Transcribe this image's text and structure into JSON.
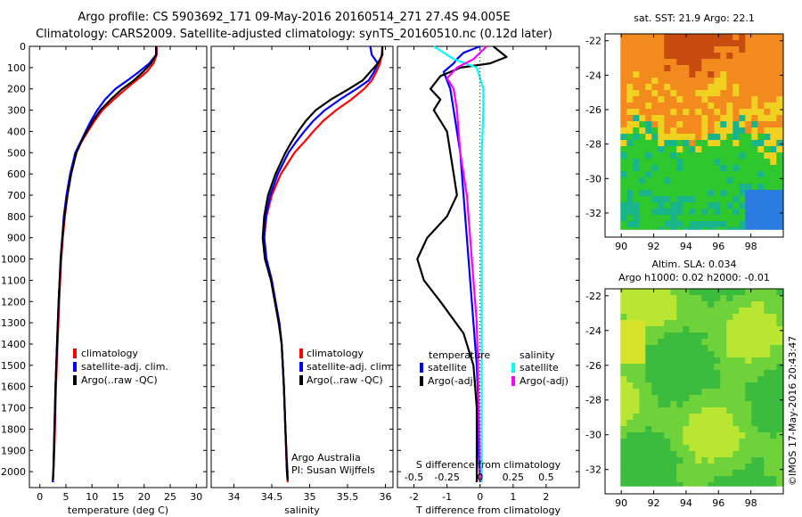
{
  "title": {
    "line1": "Argo profile: CS 5903692_171 09-May-2016 20160514_271 27.4S 94.005E",
    "line2": "Climatology: CARS2009. Satellite-adjusted climatology: synTS_20160510.nc (0.12d later)"
  },
  "watermark": "©IMOS 17-May-2016 20:43:47",
  "chart_data": [
    {
      "type": "line",
      "id": "temperature",
      "xlabel": "temperature (deg C)",
      "ylabel": "",
      "xlim": [
        -2,
        32
      ],
      "ylim": [
        2075,
        0
      ],
      "xticks": [
        0,
        5,
        10,
        15,
        20,
        25,
        30
      ],
      "yticks": [
        0,
        100,
        200,
        300,
        400,
        500,
        600,
        700,
        800,
        900,
        1000,
        1100,
        1200,
        1300,
        1400,
        1500,
        1600,
        1700,
        1800,
        1900,
        2000
      ],
      "legend": {
        "position": "center-left",
        "items": [
          "climatology",
          "satellite-adj. clim.",
          "Argo(..raw -QC)"
        ]
      },
      "series": [
        {
          "name": "climatology",
          "color": "#ff0000",
          "x": [
            22.4,
            22.4,
            21.8,
            20.5,
            18.5,
            16.5,
            14.2,
            12.0,
            10.5,
            9.2,
            8.0,
            7.0,
            6.0,
            5.3,
            4.8,
            4.4,
            4.1,
            3.7,
            3.4,
            3.1,
            2.9,
            2.7,
            2.6,
            2.5
          ],
          "y": [
            0,
            40,
            80,
            120,
            160,
            200,
            250,
            300,
            350,
            400,
            450,
            500,
            600,
            700,
            800,
            900,
            1000,
            1200,
            1400,
            1600,
            1800,
            1950,
            2000,
            2050
          ]
        },
        {
          "name": "satellite-adj. clim.",
          "color": "#0000ff",
          "x": [
            22.3,
            22.3,
            21.0,
            19.0,
            16.8,
            14.5,
            12.5,
            11.0,
            9.8,
            8.8,
            7.8,
            6.8,
            5.8,
            5.1,
            4.6,
            4.3,
            4.0,
            3.6,
            3.3,
            3.0,
            2.8,
            2.6,
            2.5
          ],
          "y": [
            0,
            40,
            80,
            120,
            160,
            200,
            250,
            300,
            350,
            400,
            450,
            500,
            600,
            700,
            800,
            900,
            1000,
            1200,
            1400,
            1600,
            1800,
            2000,
            2050
          ]
        },
        {
          "name": "Argo(..raw -QC)",
          "color": "#000000",
          "x": [
            22.3,
            22.3,
            21.3,
            19.8,
            18.0,
            15.8,
            13.6,
            11.6,
            10.2,
            9.0,
            7.9,
            7.0,
            6.0,
            5.3,
            4.7,
            4.3,
            4.0,
            3.6,
            3.3,
            3.0,
            2.8,
            2.6,
            2.5
          ],
          "y": [
            0,
            40,
            80,
            120,
            160,
            200,
            250,
            300,
            350,
            400,
            450,
            500,
            600,
            700,
            800,
            900,
            1000,
            1200,
            1400,
            1600,
            1800,
            2000,
            2040
          ]
        }
      ]
    },
    {
      "type": "line",
      "id": "salinity",
      "xlabel": "salinity",
      "ylabel": "",
      "xlim": [
        33.7,
        36.1
      ],
      "ylim": [
        2075,
        0
      ],
      "xticks": [
        34,
        34.5,
        35,
        35.5,
        36
      ],
      "legend": {
        "position": "center-right",
        "items": [
          "climatology",
          "satellite-adj. clim.",
          "Argo(..raw -QC)"
        ]
      },
      "annotation": {
        "line1": "Argo Australia",
        "line2": "PI: Susan Wijffels"
      },
      "series": [
        {
          "name": "climatology",
          "color": "#ff0000",
          "x": [
            35.96,
            35.95,
            35.93,
            35.88,
            35.82,
            35.72,
            35.55,
            35.35,
            35.18,
            35.05,
            34.93,
            34.8,
            34.62,
            34.5,
            34.43,
            34.4,
            34.43,
            34.5,
            34.55,
            34.6,
            34.63,
            34.66,
            34.68,
            34.7,
            34.71,
            34.71
          ],
          "y": [
            0,
            40,
            80,
            120,
            160,
            200,
            250,
            300,
            350,
            400,
            450,
            500,
            600,
            700,
            800,
            900,
            1000,
            1100,
            1200,
            1300,
            1400,
            1600,
            1800,
            1950,
            2000,
            2050
          ]
        },
        {
          "name": "satellite-adj. clim.",
          "color": "#0000ff",
          "x": [
            35.8,
            35.82,
            35.9,
            35.85,
            35.78,
            35.62,
            35.4,
            35.2,
            35.05,
            34.93,
            34.82,
            34.72,
            34.58,
            34.48,
            34.42,
            34.4,
            34.43,
            34.5,
            34.55,
            34.6,
            34.63,
            34.66,
            34.68,
            34.7,
            34.71
          ],
          "y": [
            0,
            40,
            80,
            120,
            160,
            200,
            250,
            300,
            350,
            400,
            450,
            500,
            600,
            700,
            800,
            900,
            1000,
            1100,
            1200,
            1300,
            1400,
            1600,
            1800,
            2000,
            2040
          ]
        },
        {
          "name": "Argo(..raw -QC)",
          "color": "#000000",
          "x": [
            35.96,
            35.96,
            35.9,
            35.8,
            35.7,
            35.52,
            35.28,
            35.08,
            34.95,
            34.85,
            34.76,
            34.68,
            34.55,
            34.45,
            34.4,
            34.38,
            34.41,
            34.49,
            34.54,
            34.59,
            34.63,
            34.66,
            34.68,
            34.7,
            34.71
          ],
          "y": [
            0,
            40,
            80,
            120,
            160,
            200,
            250,
            300,
            350,
            400,
            450,
            500,
            600,
            700,
            800,
            900,
            1000,
            1100,
            1200,
            1300,
            1400,
            1600,
            1800,
            2000,
            2040
          ]
        }
      ]
    },
    {
      "type": "line",
      "id": "difference",
      "xlabel": "T difference from climatology",
      "xlabel_top": "S difference from climatology",
      "xlim": [
        -2.5,
        3.0
      ],
      "ylim": [
        2075,
        0
      ],
      "xticks": [
        -2,
        -1,
        0,
        1,
        2
      ],
      "sticks": [
        -0.5,
        -0.25,
        0,
        0.25,
        0.5
      ],
      "zero_line": "dotted",
      "legend": {
        "position": "center",
        "groups": [
          {
            "title": "temperature",
            "items": [
              "satellite",
              "Argo(-adj)"
            ]
          },
          {
            "title": "salinity",
            "items": [
              "satellite",
              "Argo(-adj)"
            ]
          }
        ]
      },
      "series": [
        {
          "name": "temperature satellite",
          "color": "#0000ff",
          "x": [
            0,
            -0.5,
            -0.7,
            -0.8,
            -1.1,
            -1.0,
            -0.9,
            -0.8,
            -0.6,
            -0.5,
            -0.4,
            -0.3,
            -0.2,
            -0.1,
            -0.05,
            -0.05,
            -0.02,
            0
          ],
          "y": [
            0,
            30,
            60,
            80,
            120,
            160,
            200,
            300,
            500,
            700,
            900,
            1100,
            1300,
            1500,
            1700,
            1900,
            2000,
            2050
          ]
        },
        {
          "name": "temperature Argo(-adj)",
          "color": "#000000",
          "x": [
            0.4,
            0.8,
            0.3,
            -0.6,
            -1.2,
            -1.5,
            -1.2,
            -1.4,
            -1.0,
            -0.8,
            -0.7,
            -1.0,
            -1.6,
            -1.9,
            -1.7,
            -1.2,
            -0.5,
            -0.2,
            -0.1,
            -0.1,
            -0.1
          ],
          "y": [
            0,
            50,
            80,
            100,
            140,
            200,
            250,
            300,
            400,
            600,
            700,
            800,
            900,
            1000,
            1100,
            1200,
            1350,
            1500,
            1700,
            1900,
            2050
          ]
        },
        {
          "name": "salinity satellite",
          "color": "#00ffff",
          "x": [
            -1.4,
            -0.8,
            -0.1,
            0.1,
            0.1,
            0.05,
            0.05,
            0.05,
            0.05,
            0.05,
            0.05,
            0.05
          ],
          "y": [
            0,
            60,
            100,
            200,
            300,
            500,
            700,
            900,
            1200,
            1500,
            1800,
            2050
          ]
        },
        {
          "name": "salinity Argo(-adj)",
          "color": "#ff00ff",
          "x": [
            0.2,
            -0.2,
            -0.7,
            -1.0,
            -0.8,
            -0.7,
            -0.6,
            -0.4,
            -0.3,
            -0.2,
            -0.1,
            -0.05,
            0
          ],
          "y": [
            0,
            60,
            100,
            150,
            200,
            300,
            500,
            700,
            900,
            1100,
            1300,
            1600,
            2050
          ]
        }
      ]
    },
    {
      "type": "heatmap",
      "id": "sst-map",
      "title": "sat. SST: 21.9 Argo: 22.1",
      "xlim": [
        89,
        100
      ],
      "ylim": [
        -33.4,
        -21.6
      ],
      "xticks": [
        90,
        92,
        94,
        96,
        98
      ],
      "yticks": [
        -22,
        -24,
        -26,
        -28,
        -30,
        -32
      ],
      "colors": {
        "warm": "#c84b10",
        "orange": "#f28a1e",
        "yellow": "#f0d020",
        "green": "#2ec82e",
        "teal": "#18b48c",
        "blue": "#2a7ce0"
      }
    },
    {
      "type": "heatmap",
      "id": "sla-map",
      "title_line1": "Altim. SLA: 0.034",
      "title_line2": "Argo h1000: 0.02 h2000: -0.01",
      "xlim": [
        89,
        100
      ],
      "ylim": [
        -33.4,
        -21.6
      ],
      "xticks": [
        90,
        92,
        94,
        96,
        98
      ],
      "yticks": [
        -22,
        -24,
        -26,
        -28,
        -30,
        -32
      ],
      "colors": {
        "light": "#b8e632",
        "mid": "#6fd23a",
        "dark": "#3bbc3f",
        "yellow": "#d6e22a"
      }
    }
  ]
}
